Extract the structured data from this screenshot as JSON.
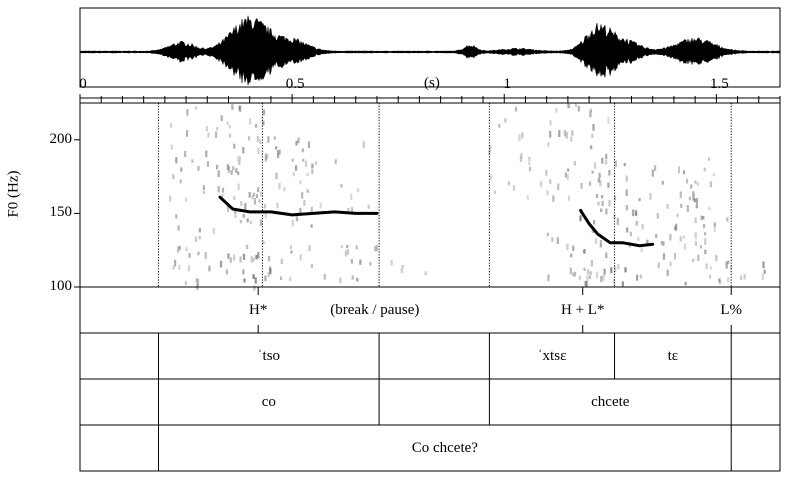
{
  "time_axis": {
    "unit_label": "(s)",
    "range": [
      0,
      1.65
    ],
    "tick_labels": [
      {
        "t": 0,
        "label": "0"
      },
      {
        "t": 0.5,
        "label": "0.5"
      },
      {
        "t": 1,
        "label": "1"
      },
      {
        "t": 1.5,
        "label": "1.5"
      }
    ],
    "minor_tick_step": 0.05
  },
  "f0_axis": {
    "title": "F0 (Hz)",
    "range": [
      100,
      225
    ],
    "tick_labels": [
      {
        "hz": 100,
        "label": "100"
      },
      {
        "hz": 150,
        "label": "150"
      },
      {
        "hz": 200,
        "label": "200"
      }
    ]
  },
  "chart_data": {
    "type": "line",
    "xlabel": "(s)",
    "ylabel": "F0 (Hz)",
    "xlim": [
      0,
      1.65
    ],
    "ylim": [
      100,
      225
    ],
    "series": [
      {
        "x": [
          0.33,
          0.36,
          0.4,
          0.45,
          0.5,
          0.55,
          0.6,
          0.65,
          0.7
        ],
        "y": [
          161,
          153,
          151,
          151,
          149,
          150,
          151,
          150,
          150
        ]
      },
      {
        "x": [
          1.18,
          1.2,
          1.22,
          1.25,
          1.28,
          1.3,
          1.32,
          1.35
        ],
        "y": [
          152,
          143,
          136,
          130,
          130,
          129,
          128,
          129
        ]
      }
    ]
  },
  "tiers": [
    {
      "boundaries": [],
      "points": [
        0.42,
        1.185,
        1.535
      ],
      "labels": [
        {
          "t": 0.42,
          "text": "H*"
        },
        {
          "t": 0.695,
          "text": "(break / pause)"
        },
        {
          "t": 1.185,
          "text": "H + L*"
        },
        {
          "t": 1.535,
          "text": "L%"
        }
      ]
    },
    {
      "boundaries": [
        0.185,
        0.705,
        0.965,
        1.26,
        1.535
      ],
      "labels": [
        {
          "t": 0.445,
          "text": "ˈtso"
        },
        {
          "t": 1.1125,
          "text": "ˈxtsɛ"
        },
        {
          "t": 1.3975,
          "text": "tɛ"
        }
      ]
    },
    {
      "boundaries": [
        0.185,
        0.705,
        0.965,
        1.535
      ],
      "labels": [
        {
          "t": 0.445,
          "text": "co"
        },
        {
          "t": 1.25,
          "text": "chcete"
        }
      ]
    },
    {
      "boundaries": [
        0.185,
        1.535
      ],
      "labels": [
        {
          "t": 0.86,
          "text": "Co chcete?"
        }
      ]
    }
  ],
  "spectrogram_dotted_lines": [
    0.185,
    0.43,
    0.705,
    0.965,
    1.26,
    1.535
  ],
  "colors": {
    "ink": "#000000",
    "dark_energy": "#1a1a1a",
    "mid_energy": "#7a7a7a"
  }
}
